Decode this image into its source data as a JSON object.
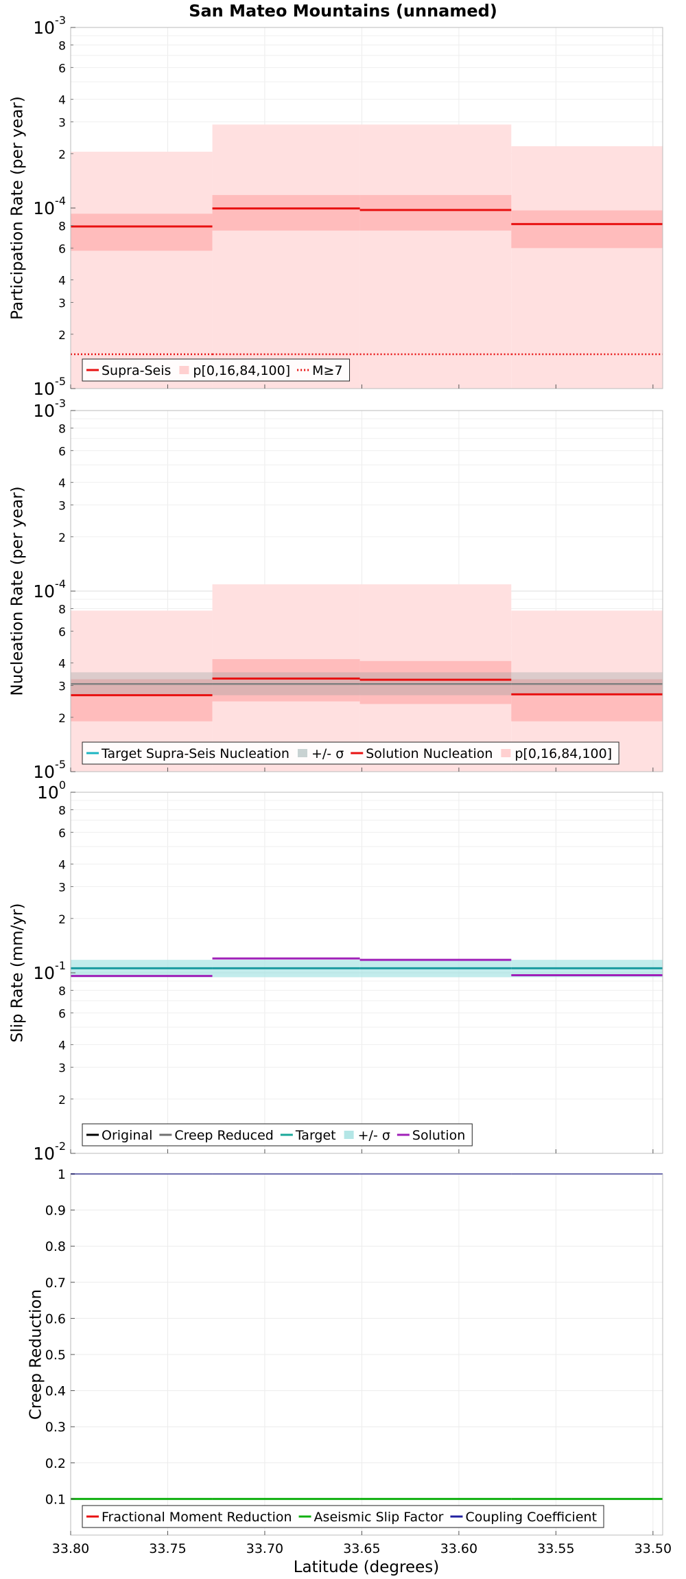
{
  "title": "San Mateo Mountains (unnamed)",
  "chart_data": {
    "x": {
      "label": "Latitude (degrees)",
      "range": [
        33.8,
        33.495
      ],
      "ticks": [
        33.8,
        33.75,
        33.7,
        33.65,
        33.6,
        33.55,
        33.5
      ],
      "tick_labels": [
        "33.80",
        "33.75",
        "33.70",
        "33.65",
        "33.60",
        "33.55",
        "33.50"
      ]
    },
    "segments": [
      [
        33.8,
        33.727
      ],
      [
        33.727,
        33.651
      ],
      [
        33.651,
        33.573
      ],
      [
        33.573,
        33.495
      ]
    ],
    "panels": [
      {
        "type": "step-line",
        "ylabel": "Participation Rate (per year)",
        "yscale": "log",
        "ylim": [
          1e-05,
          0.001
        ],
        "decades": [
          {
            "base": "10",
            "exp": "-5",
            "value": 1e-05
          },
          {
            "base": "10",
            "exp": "-4",
            "value": 0.0001
          },
          {
            "base": "10",
            "exp": "-3",
            "value": 0.001
          }
        ],
        "minor_labels": [
          "2",
          "3",
          "4",
          "6",
          "8"
        ],
        "bands": [
          {
            "color": "#ffe0e0",
            "opacity": 1,
            "lower": [
              1e-05,
              1e-05,
              1e-05,
              1e-05
            ],
            "upper": [
              0.000205,
              0.00029,
              0.00029,
              0.00022
            ]
          },
          {
            "color": "#ffbcbc",
            "opacity": 1,
            "lower": [
              5.8e-05,
              7.5e-05,
              7.5e-05,
              6e-05
            ],
            "upper": [
              9.3e-05,
              0.000118,
              0.000118,
              9.7e-05
            ]
          }
        ],
        "series": [
          {
            "name": "Supra-Seis",
            "color": "#e81010",
            "width": 3,
            "dash": "",
            "values": [
              7.9e-05,
              9.95e-05,
              9.75e-05,
              8.15e-05
            ]
          },
          {
            "name": "M≥7",
            "color": "#e81010",
            "width": 2.5,
            "dash": "2,3",
            "values": [
              1.55e-05,
              1.55e-05,
              1.55e-05,
              1.55e-05
            ]
          }
        ],
        "legend": {
          "position": "bottom-left",
          "entries": [
            {
              "label": "Supra-Seis",
              "kind": "line",
              "color": "#e81010",
              "dash": ""
            },
            {
              "label": "p[0,16,84,100]",
              "kind": "patch",
              "color": "#ffd0d0",
              "dash": ""
            },
            {
              "label": "M≥7",
              "kind": "line",
              "color": "#e81010",
              "dash": "2,3"
            }
          ]
        }
      },
      {
        "type": "step-line",
        "ylabel": "Nucleation Rate (per year)",
        "yscale": "log",
        "ylim": [
          1e-05,
          0.001
        ],
        "decades": [
          {
            "base": "10",
            "exp": "-5",
            "value": 1e-05
          },
          {
            "base": "10",
            "exp": "-4",
            "value": 0.0001
          },
          {
            "base": "10",
            "exp": "-3",
            "value": 0.001
          }
        ],
        "minor_labels": [
          "2",
          "3",
          "4",
          "6",
          "8"
        ],
        "bands": [
          {
            "color": "#ffe0e0",
            "opacity": 1,
            "lower": [
              1e-05,
              1e-05,
              1e-05,
              1e-05
            ],
            "upper": [
              7.8e-05,
              0.000109,
              0.000109,
              7.8e-05
            ]
          },
          {
            "color": "#ffbcbc",
            "opacity": 1,
            "lower": [
              1.9e-05,
              2.45e-05,
              2.37e-05,
              1.9e-05
            ],
            "upper": [
              3.25e-05,
              4.2e-05,
              4.1e-05,
              3.25e-05
            ]
          },
          {
            "color": "#8a9a9a",
            "opacity": 0.3,
            "lower": [
              2.65e-05,
              2.65e-05,
              2.65e-05,
              2.65e-05
            ],
            "upper": [
              3.55e-05,
              3.55e-05,
              3.55e-05,
              3.55e-05
            ]
          }
        ],
        "series": [
          {
            "name": "Target Supra-Seis Nucleation",
            "color": "#808080",
            "width": 2.5,
            "dash": "",
            "values": [
              3.06e-05,
              3.06e-05,
              3.06e-05,
              3.06e-05
            ]
          },
          {
            "name": "Solution Nucleation",
            "color": "#e81010",
            "width": 3,
            "dash": "",
            "values": [
              2.65e-05,
              3.28e-05,
              3.23e-05,
              2.68e-05
            ]
          }
        ],
        "legend": {
          "position": "bottom-left",
          "entries": [
            {
              "label": "Target Supra-Seis Nucleation",
              "kind": "line",
              "color": "#1cb5c2",
              "dash": ""
            },
            {
              "label": "+/- σ",
              "kind": "patch",
              "color": "#c8d2d2",
              "dash": ""
            },
            {
              "label": "Solution Nucleation",
              "kind": "line",
              "color": "#e81010",
              "dash": ""
            },
            {
              "label": "p[0,16,84,100]",
              "kind": "patch",
              "color": "#ffd0d0",
              "dash": ""
            }
          ]
        }
      },
      {
        "type": "step-line",
        "ylabel": "Slip Rate (mm/yr)",
        "yscale": "log",
        "ylim": [
          0.01,
          1
        ],
        "decades": [
          {
            "base": "10",
            "exp": "-2",
            "value": 0.01
          },
          {
            "base": "10",
            "exp": "-1",
            "value": 0.1
          },
          {
            "base": "10",
            "exp": "0",
            "value": 1
          }
        ],
        "minor_labels": [
          "2",
          "3",
          "4",
          "6",
          "8"
        ],
        "bands": [
          {
            "color": "#aee5e5",
            "opacity": 0.75,
            "lower": [
              0.0945,
              0.0945,
              0.0945,
              0.0945
            ],
            "upper": [
              0.118,
              0.118,
              0.118,
              0.118
            ]
          }
        ],
        "series": [
          {
            "name": "Target",
            "color": "#1a9aa0",
            "width": 3,
            "dash": "",
            "values": [
              0.106,
              0.106,
              0.106,
              0.106
            ]
          },
          {
            "name": "Solution",
            "color": "#a020b8",
            "width": 3,
            "dash": "",
            "values": [
              0.096,
              0.12,
              0.118,
              0.097
            ]
          }
        ],
        "legend": {
          "position": "bottom-left",
          "entries": [
            {
              "label": "Original",
              "kind": "line",
              "color": "#000000",
              "dash": ""
            },
            {
              "label": "Creep Reduced",
              "kind": "line",
              "color": "#707070",
              "dash": ""
            },
            {
              "label": "Target",
              "kind": "line",
              "color": "#1aa89a",
              "dash": ""
            },
            {
              "label": "+/- σ",
              "kind": "patch",
              "color": "#b4e6e6",
              "dash": ""
            },
            {
              "label": "Solution",
              "kind": "line",
              "color": "#a020b8",
              "dash": ""
            }
          ]
        }
      },
      {
        "type": "step-line",
        "ylabel": "Creep Reduction",
        "yscale": "linear",
        "ylim": [
          0,
          1
        ],
        "ticks": [
          0.1,
          0.2,
          0.3,
          0.4,
          0.5,
          0.6,
          0.7,
          0.8,
          0.9,
          1
        ],
        "tick_labels": [
          "0.1",
          "0.2",
          "0.3",
          "0.4",
          "0.5",
          "0.6",
          "0.7",
          "0.8",
          "0.9",
          "1"
        ],
        "bands": [],
        "series": [
          {
            "name": "Aseismic Slip Factor",
            "color": "#10b010",
            "width": 3,
            "dash": "",
            "values": [
              0.1,
              0.1,
              0.1,
              0.1
            ]
          },
          {
            "name": "Coupling Coefficient",
            "color": "#2020a0",
            "width": 2,
            "dash": "",
            "values": [
              1,
              1,
              1,
              1
            ]
          }
        ],
        "legend": {
          "position": "bottom-left",
          "entries": [
            {
              "label": "Fractional Moment Reduction",
              "kind": "line",
              "color": "#e81010",
              "dash": ""
            },
            {
              "label": "Aseismic Slip Factor",
              "kind": "line",
              "color": "#10b010",
              "dash": ""
            },
            {
              "label": "Coupling Coefficient",
              "kind": "line",
              "color": "#2020a0",
              "dash": ""
            }
          ]
        }
      }
    ]
  }
}
